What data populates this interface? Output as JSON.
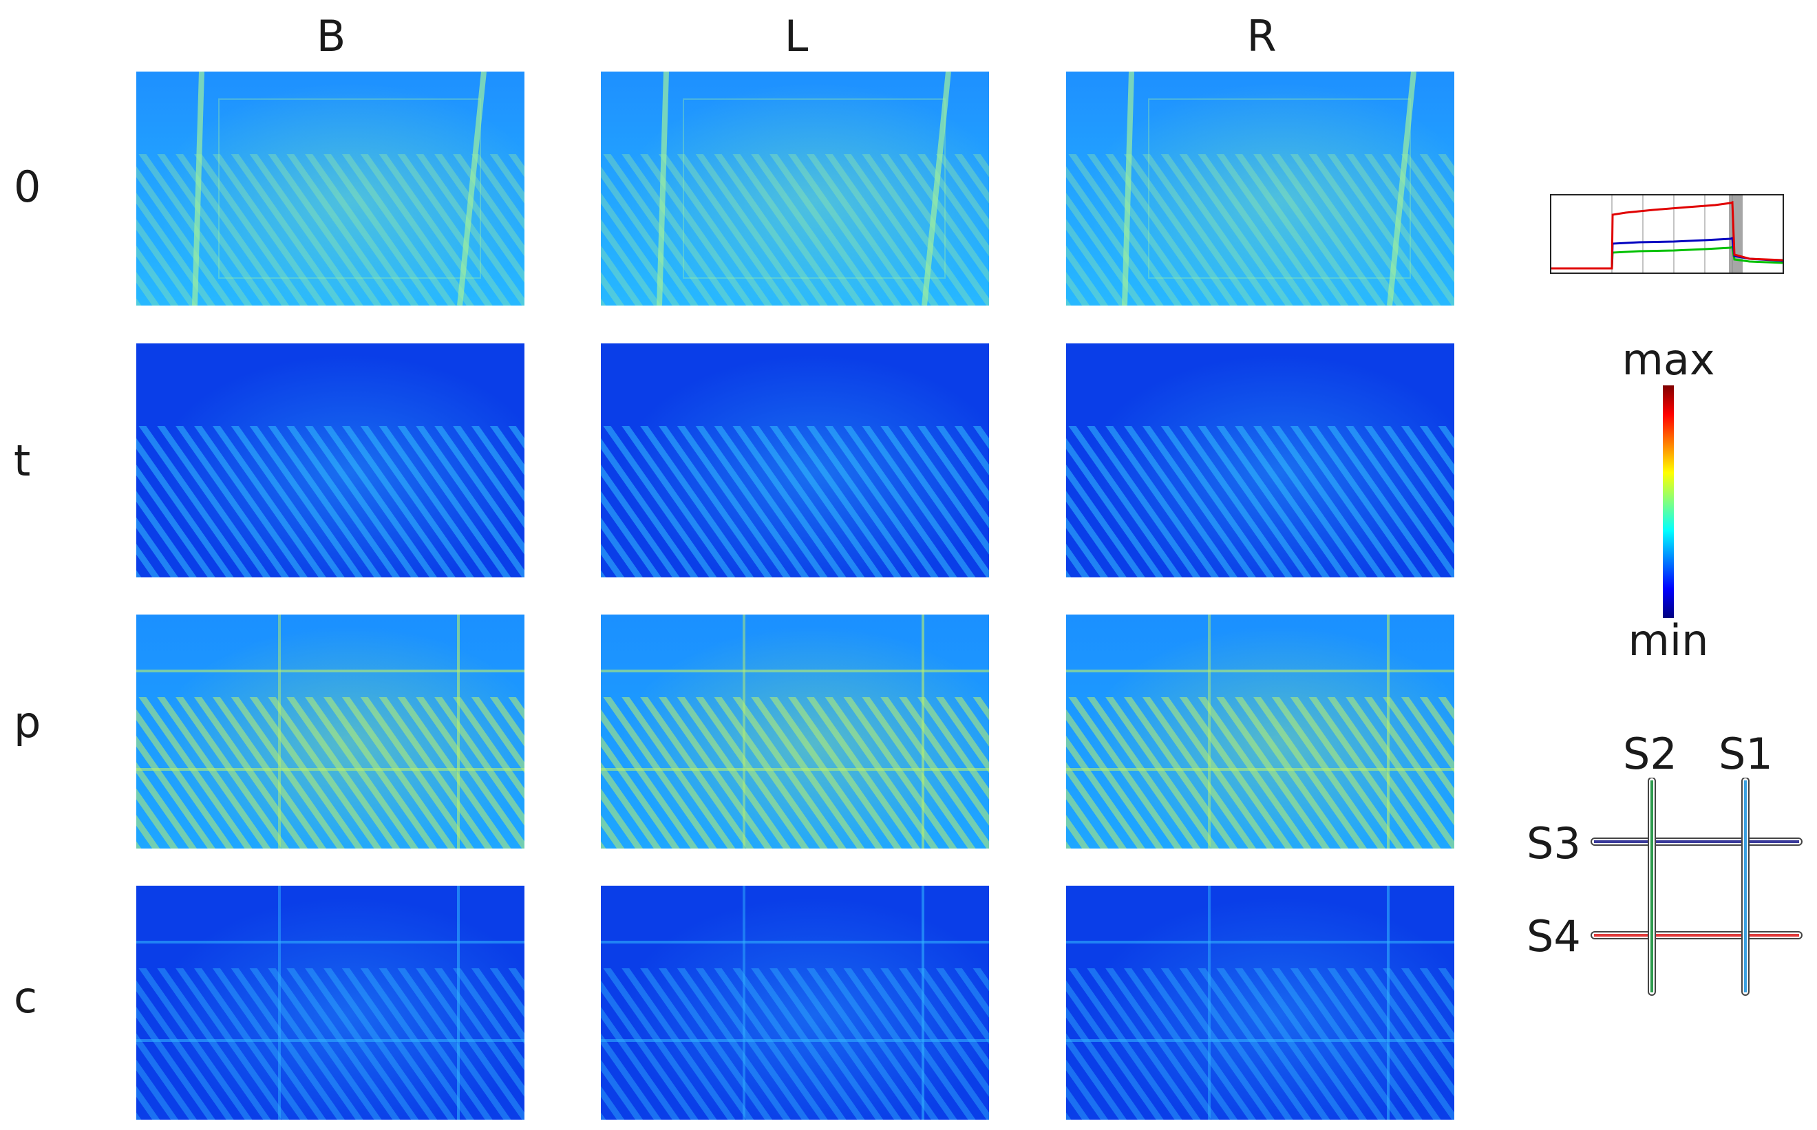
{
  "columns": [
    "B",
    "L",
    "R"
  ],
  "rows": [
    "0",
    "t",
    "p",
    "c"
  ],
  "colorbar": {
    "max_label": "max",
    "min_label": "min",
    "colormap": "jet",
    "colors": [
      "#00007f",
      "#0000ff",
      "#0080ff",
      "#00ffff",
      "#80ff80",
      "#ffff00",
      "#ff8000",
      "#ff0000",
      "#7f0000"
    ]
  },
  "sensors": {
    "S1": {
      "label": "S1",
      "color": "#3aa0e0"
    },
    "S2": {
      "label": "S2",
      "color": "#2e9a4e"
    },
    "S3": {
      "label": "S3",
      "color": "#3a3a9a"
    },
    "S4": {
      "label": "S4",
      "color": "#e03a3a"
    }
  },
  "trace_colors": {
    "red": "#e00000",
    "blue": "#0000c0",
    "green": "#00c000",
    "shaded": "#888888"
  },
  "panel_styles": {
    "0": {
      "base": "#27b8ff",
      "top": "#1e90ff",
      "accent": "#9ef0a0",
      "stripe_opacity": 0.35
    },
    "t": {
      "base": "#0a3ee8",
      "top": "#0a3ee8",
      "accent": "#35c8ff",
      "stripe_opacity": 0.5
    },
    "p": {
      "base": "#1ea6ff",
      "top": "#1b90ff",
      "accent": "#b8f070",
      "stripe_opacity": 0.55
    },
    "c": {
      "base": "#0a3ee8",
      "top": "#0a3ee8",
      "accent": "#30b0ff",
      "stripe_opacity": 0.45
    }
  }
}
